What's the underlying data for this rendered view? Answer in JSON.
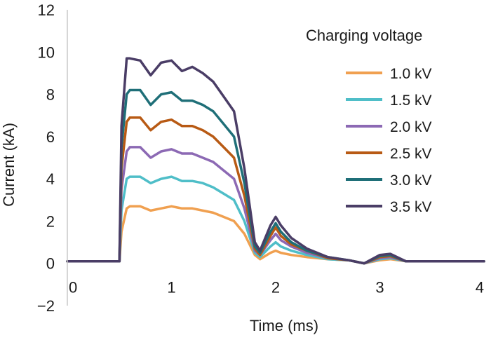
{
  "chart_data": {
    "type": "line",
    "xlabel": "Time (ms)",
    "ylabel": "Current (kA)",
    "xlim": [
      0,
      4
    ],
    "ylim": [
      -2,
      12
    ],
    "x_ticks": [
      "0",
      "1",
      "2",
      "3",
      "4"
    ],
    "y_ticks": [
      "−2",
      "0",
      "2",
      "4",
      "6",
      "8",
      "10",
      "12"
    ],
    "grid": false,
    "legend_title": "Charging voltage",
    "legend_position": "right",
    "x": [
      0.0,
      0.5,
      0.52,
      0.57,
      0.6,
      0.7,
      0.8,
      0.9,
      1.0,
      1.1,
      1.2,
      1.3,
      1.4,
      1.5,
      1.6,
      1.7,
      1.8,
      1.85,
      1.95,
      2.0,
      2.05,
      2.15,
      2.3,
      2.5,
      2.7,
      2.85,
      3.0,
      3.1,
      3.25,
      3.5,
      4.0
    ],
    "series": [
      {
        "name": "1.0 kV",
        "color": "#f0a050",
        "values": [
          0.1,
          0.1,
          1.5,
          2.6,
          2.7,
          2.7,
          2.5,
          2.6,
          2.7,
          2.6,
          2.6,
          2.5,
          2.4,
          2.2,
          2.0,
          1.4,
          0.4,
          0.2,
          0.5,
          0.6,
          0.5,
          0.4,
          0.3,
          0.2,
          0.15,
          0.0,
          0.15,
          0.2,
          0.1,
          0.1,
          0.1
        ]
      },
      {
        "name": "1.5 kV",
        "color": "#4fbec8",
        "values": [
          0.1,
          0.1,
          2.5,
          4.0,
          4.1,
          4.1,
          3.8,
          4.0,
          4.1,
          3.9,
          3.9,
          3.8,
          3.6,
          3.3,
          3.0,
          2.0,
          0.5,
          0.3,
          0.8,
          1.0,
          0.8,
          0.6,
          0.4,
          0.2,
          0.15,
          0.0,
          0.2,
          0.25,
          0.1,
          0.1,
          0.1
        ]
      },
      {
        "name": "2.0 kV",
        "color": "#8c69b4",
        "values": [
          0.1,
          0.1,
          3.5,
          5.3,
          5.5,
          5.5,
          5.0,
          5.3,
          5.4,
          5.2,
          5.2,
          5.0,
          4.8,
          4.4,
          4.0,
          2.6,
          0.6,
          0.4,
          1.1,
          1.4,
          1.1,
          0.8,
          0.5,
          0.25,
          0.15,
          0.0,
          0.25,
          0.3,
          0.1,
          0.1,
          0.1
        ]
      },
      {
        "name": "2.5 kV",
        "color": "#b85a14",
        "values": [
          0.1,
          0.1,
          4.5,
          6.7,
          6.9,
          6.9,
          6.3,
          6.7,
          6.8,
          6.5,
          6.5,
          6.3,
          6.0,
          5.5,
          5.0,
          3.2,
          0.7,
          0.4,
          1.3,
          1.7,
          1.3,
          0.9,
          0.6,
          0.25,
          0.15,
          0.0,
          0.3,
          0.35,
          0.1,
          0.1,
          0.1
        ]
      },
      {
        "name": "3.0 kV",
        "color": "#1f6f78",
        "values": [
          0.1,
          0.1,
          5.5,
          8.0,
          8.2,
          8.2,
          7.5,
          8.0,
          8.1,
          7.7,
          7.7,
          7.5,
          7.2,
          6.6,
          6.0,
          3.8,
          0.8,
          0.5,
          1.5,
          1.9,
          1.5,
          1.0,
          0.6,
          0.3,
          0.15,
          0.0,
          0.35,
          0.4,
          0.1,
          0.1,
          0.1
        ]
      },
      {
        "name": "3.5 kV",
        "color": "#4a3d66",
        "values": [
          0.1,
          0.1,
          6.5,
          9.7,
          9.7,
          9.6,
          8.9,
          9.5,
          9.6,
          9.1,
          9.3,
          9.0,
          8.6,
          7.9,
          7.2,
          4.5,
          1.0,
          0.6,
          1.8,
          2.2,
          1.8,
          1.2,
          0.7,
          0.3,
          0.15,
          0.0,
          0.4,
          0.45,
          0.1,
          0.1,
          0.1
        ]
      }
    ]
  }
}
